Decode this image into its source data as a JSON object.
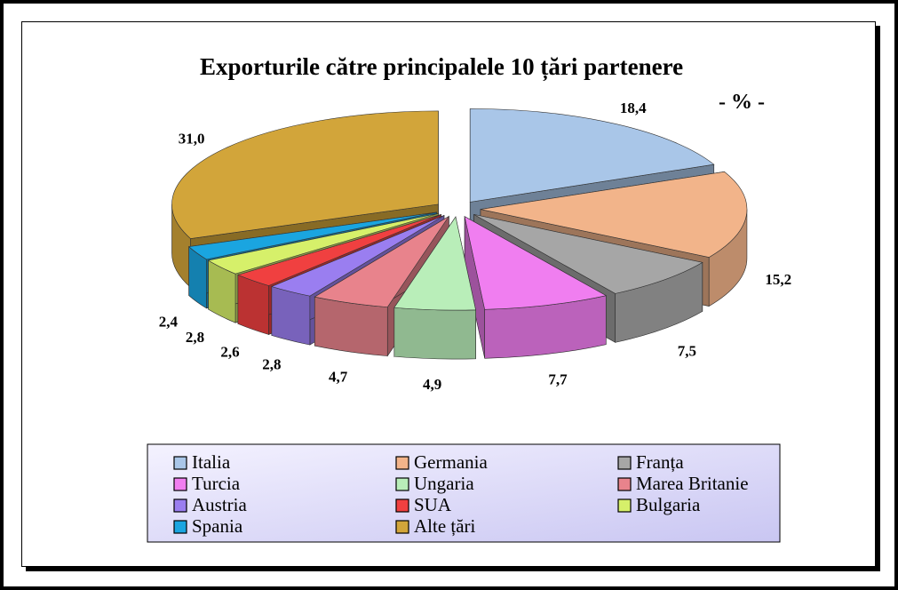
{
  "chart_data": {
    "type": "pie",
    "title": "Exporturile către principalele 10 țări partenere",
    "subtitle": "- % -",
    "categories": [
      "Italia",
      "Germania",
      "Franța",
      "Turcia",
      "Ungaria",
      "Marea Britanie",
      "Austria",
      "SUA",
      "Bulgaria",
      "Spania",
      "Alte țări"
    ],
    "values": [
      18.4,
      15.2,
      7.5,
      7.7,
      4.9,
      4.7,
      2.8,
      2.6,
      2.8,
      2.4,
      31.0
    ],
    "value_labels": [
      "18,4",
      "15,2",
      "7,5",
      "7,7",
      "4,9",
      "4,7",
      "2,8",
      "2,6",
      "2,8",
      "2,4",
      "31,0"
    ],
    "colors": [
      "#a9c6e8",
      "#f2b48a",
      "#a6a6a6",
      "#f07ef0",
      "#b9eeb9",
      "#e8838c",
      "#9a7ef0",
      "#f04040",
      "#d6f06a",
      "#1aa5e0",
      "#d2a53a"
    ],
    "legend": "bottom"
  }
}
